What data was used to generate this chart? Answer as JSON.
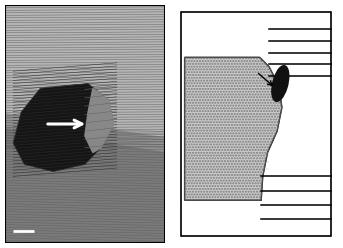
{
  "fig_width": 3.43,
  "fig_height": 2.48,
  "dpi": 100,
  "bg_color": "#ffffff",
  "left_bg": "#909090",
  "dark_particle_color": "#1c1c1c",
  "dark_particle_inner": "#111111",
  "upper_bg_color": "#b8b8b8",
  "lower_bg_color": "#888888",
  "fringe_color_light": "#606060",
  "fringe_color_dark": "#050505",
  "tip_color": "#787878",
  "crystal_face_color": "#c8c8c8",
  "crystal_edge_color": "#000000",
  "nanotube_color": "#111111",
  "line_color": "#000000",
  "arrow_white": "#ffffff",
  "scale_bar_color": "#ffffff"
}
